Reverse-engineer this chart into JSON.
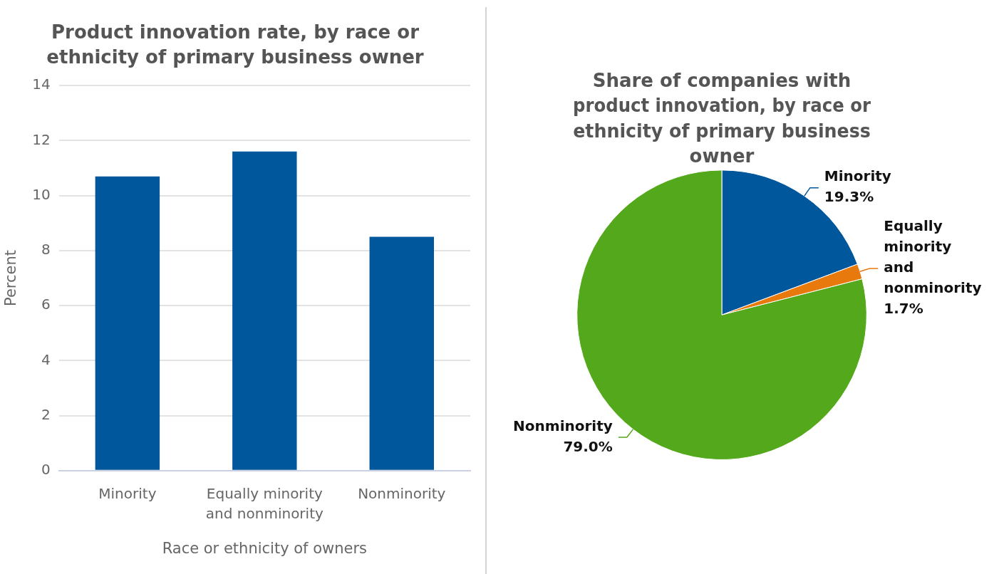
{
  "chart_data": [
    {
      "type": "bar",
      "title": "Product innovation rate, by race or ethnicity of primary business owner",
      "xlabel": "Race or ethnicity of owners",
      "ylabel": "Percent",
      "categories": [
        "Minority",
        "Equally minority and nonminority",
        "Nonminority"
      ],
      "values": [
        10.7,
        11.6,
        8.5
      ],
      "color": "#00579b",
      "ylim": [
        0,
        14
      ],
      "yticks": [
        0,
        2,
        4,
        6,
        8,
        10,
        12,
        14
      ],
      "grid": "y",
      "legend": false
    },
    {
      "type": "pie",
      "title": "Share of companies with product innovation, by race or ethnicity of primary business owner",
      "categories": [
        "Minority",
        "Equally minority and nonminority",
        "Nonminority"
      ],
      "values": [
        19.3,
        1.7,
        79.0
      ],
      "value_labels": [
        "19.3%",
        "1.7%",
        "79.0%"
      ],
      "colors": [
        "#00579b",
        "#e8790c",
        "#54a81b"
      ],
      "legend": false
    }
  ]
}
